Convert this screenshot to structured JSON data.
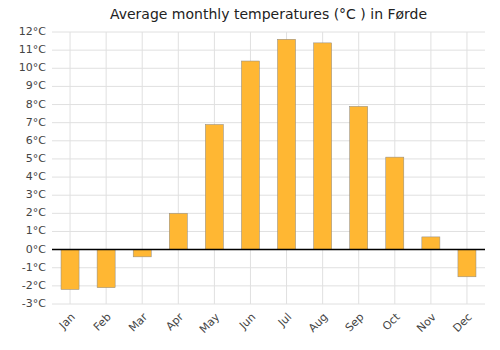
{
  "chart_data": {
    "type": "bar",
    "title": "Average monthly temperatures (°C ) in Førde",
    "categories": [
      "Jan",
      "Feb",
      "Mar",
      "Apr",
      "May",
      "Jun",
      "Jul",
      "Aug",
      "Sep",
      "Oct",
      "Nov",
      "Dec"
    ],
    "values": [
      -2.2,
      -2.1,
      -0.4,
      2.0,
      6.9,
      10.4,
      11.6,
      11.4,
      7.9,
      5.1,
      0.7,
      -1.5
    ],
    "color": "#FFB733",
    "ylim": [
      -3,
      12
    ],
    "yticks": [
      {
        "value": -3,
        "label": "-3°C"
      },
      {
        "value": -2,
        "label": "-2°C"
      },
      {
        "value": -1,
        "label": "-1°C"
      },
      {
        "value": 0,
        "label": "0°C"
      },
      {
        "value": 1,
        "label": "1°C"
      },
      {
        "value": 2,
        "label": "2°C"
      },
      {
        "value": 3,
        "label": "3°C"
      },
      {
        "value": 4,
        "label": "4°C"
      },
      {
        "value": 5,
        "label": "5°C"
      },
      {
        "value": 6,
        "label": "6°C"
      },
      {
        "value": 7,
        "label": "7°C"
      },
      {
        "value": 8,
        "label": "8°C"
      },
      {
        "value": 9,
        "label": "9°C"
      },
      {
        "value": 10,
        "label": "10°C"
      },
      {
        "value": 11,
        "label": "11°C"
      },
      {
        "value": 12,
        "label": "12°C"
      }
    ],
    "grid": true
  }
}
